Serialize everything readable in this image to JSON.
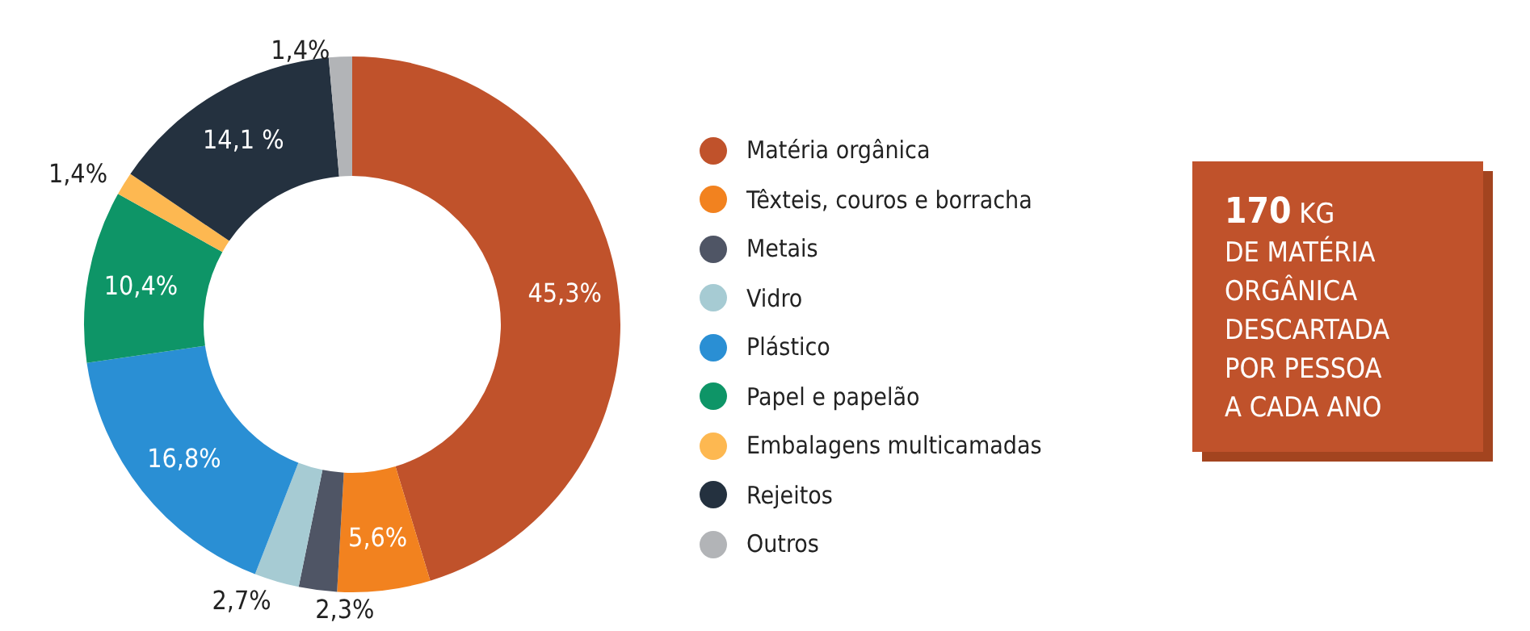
{
  "chart_data": {
    "type": "donut",
    "categories": [
      "Matéria orgânica",
      "Têxteis, couros e borracha",
      "Metais",
      "Vidro",
      "Plástico",
      "Papel e papelão",
      "Embalagens multicamadas",
      "Rejeitos",
      "Outros"
    ],
    "values": [
      45.3,
      5.6,
      2.3,
      2.7,
      16.8,
      10.4,
      1.4,
      14.1,
      1.4
    ],
    "colors": [
      "#c0522b",
      "#f2821f",
      "#4f5565",
      "#a6cbd3",
      "#2a8fd4",
      "#0e9567",
      "#fdb851",
      "#24313f",
      "#b2b4b7"
    ],
    "value_labels": [
      "45,3%",
      "5,6%",
      "2,3%",
      "2,7%",
      "16,8%",
      "10,4%",
      "1,4%",
      "14,1 %",
      "1,4%"
    ],
    "legend": "right",
    "annotations": [
      "170 KG\nDE MATÉRIA\nORGÂNICA\nDESCARTADA\nPOR PESSOA\nA CADA ANO"
    ]
  }
}
